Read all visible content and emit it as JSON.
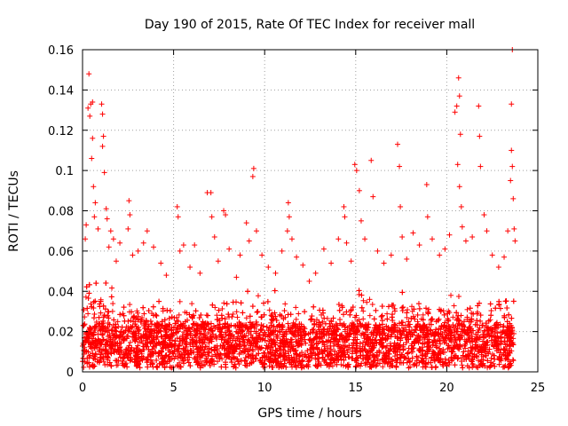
{
  "chart_data": {
    "type": "scatter",
    "title": "Day 190 of 2015, Rate Of TEC Index for receiver mall",
    "xlabel": "GPS time / hours",
    "ylabel": "ROTI / TECUs",
    "xlim": [
      0,
      25
    ],
    "ylim": [
      0,
      0.16
    ],
    "xticks": [
      0,
      5,
      10,
      15,
      20,
      25
    ],
    "xtick_labels": [
      "0",
      "5",
      "10",
      "15",
      "20",
      "25"
    ],
    "yticks": [
      0,
      0.02,
      0.04,
      0.06,
      0.08,
      0.1,
      0.12,
      0.14,
      0.16
    ],
    "ytick_labels": [
      "0",
      "0.02",
      "0.04",
      "0.06",
      "0.08",
      "0.1",
      "0.12",
      "0.14",
      "0.16"
    ],
    "grid": true,
    "marker": "+",
    "color": "#ff0000",
    "x_range_observed": [
      0,
      23.7
    ],
    "series": [
      {
        "points": [
          [
            0.35,
            0.148
          ],
          [
            0.45,
            0.133
          ],
          [
            0.3,
            0.131
          ],
          [
            0.55,
            0.134
          ],
          [
            0.4,
            0.127
          ],
          [
            1.05,
            0.133
          ],
          [
            1.1,
            0.128
          ],
          [
            1.15,
            0.117
          ],
          [
            1.1,
            0.112
          ],
          [
            0.55,
            0.116
          ],
          [
            0.5,
            0.106
          ],
          [
            1.2,
            0.099
          ],
          [
            0.6,
            0.092
          ],
          [
            0.7,
            0.084
          ],
          [
            0.65,
            0.077
          ],
          [
            0.85,
            0.071
          ],
          [
            0.2,
            0.073
          ],
          [
            0.15,
            0.066
          ],
          [
            1.3,
            0.081
          ],
          [
            1.35,
            0.076
          ],
          [
            1.45,
            0.062
          ],
          [
            1.55,
            0.07
          ],
          [
            1.7,
            0.066
          ],
          [
            1.85,
            0.055
          ],
          [
            2.05,
            0.064
          ],
          [
            2.55,
            0.085
          ],
          [
            2.6,
            0.078
          ],
          [
            2.5,
            0.071
          ],
          [
            2.75,
            0.058
          ],
          [
            3.05,
            0.06
          ],
          [
            3.35,
            0.064
          ],
          [
            3.55,
            0.07
          ],
          [
            3.9,
            0.062
          ],
          [
            4.3,
            0.054
          ],
          [
            4.6,
            0.048
          ],
          [
            5.2,
            0.082
          ],
          [
            5.25,
            0.077
          ],
          [
            5.35,
            0.06
          ],
          [
            5.55,
            0.063
          ],
          [
            5.9,
            0.052
          ],
          [
            6.15,
            0.063
          ],
          [
            6.45,
            0.049
          ],
          [
            6.85,
            0.089
          ],
          [
            7.05,
            0.089
          ],
          [
            7.1,
            0.077
          ],
          [
            7.25,
            0.067
          ],
          [
            7.45,
            0.055
          ],
          [
            7.75,
            0.08
          ],
          [
            7.85,
            0.078
          ],
          [
            8.05,
            0.061
          ],
          [
            8.45,
            0.047
          ],
          [
            8.65,
            0.058
          ],
          [
            9.0,
            0.074
          ],
          [
            9.15,
            0.065
          ],
          [
            9.35,
            0.097
          ],
          [
            9.4,
            0.101
          ],
          [
            9.55,
            0.07
          ],
          [
            9.85,
            0.058
          ],
          [
            10.2,
            0.052
          ],
          [
            10.6,
            0.049
          ],
          [
            10.95,
            0.06
          ],
          [
            11.3,
            0.084
          ],
          [
            11.35,
            0.077
          ],
          [
            11.25,
            0.07
          ],
          [
            11.5,
            0.066
          ],
          [
            11.75,
            0.057
          ],
          [
            12.1,
            0.053
          ],
          [
            12.45,
            0.045
          ],
          [
            12.8,
            0.049
          ],
          [
            13.25,
            0.061
          ],
          [
            13.65,
            0.054
          ],
          [
            14.05,
            0.066
          ],
          [
            14.35,
            0.082
          ],
          [
            14.4,
            0.077
          ],
          [
            14.5,
            0.064
          ],
          [
            14.75,
            0.055
          ],
          [
            14.95,
            0.103
          ],
          [
            15.05,
            0.1
          ],
          [
            15.2,
            0.09
          ],
          [
            15.3,
            0.075
          ],
          [
            15.5,
            0.066
          ],
          [
            15.85,
            0.105
          ],
          [
            15.95,
            0.087
          ],
          [
            16.2,
            0.06
          ],
          [
            16.55,
            0.054
          ],
          [
            16.95,
            0.058
          ],
          [
            17.3,
            0.113
          ],
          [
            17.4,
            0.102
          ],
          [
            17.45,
            0.082
          ],
          [
            17.55,
            0.067
          ],
          [
            17.8,
            0.056
          ],
          [
            18.15,
            0.069
          ],
          [
            18.5,
            0.063
          ],
          [
            18.9,
            0.093
          ],
          [
            18.95,
            0.077
          ],
          [
            19.2,
            0.066
          ],
          [
            19.6,
            0.058
          ],
          [
            19.9,
            0.061
          ],
          [
            20.15,
            0.068
          ],
          [
            20.45,
            0.129
          ],
          [
            20.55,
            0.132
          ],
          [
            20.65,
            0.146
          ],
          [
            20.7,
            0.137
          ],
          [
            20.75,
            0.118
          ],
          [
            20.6,
            0.103
          ],
          [
            20.7,
            0.092
          ],
          [
            20.8,
            0.082
          ],
          [
            20.85,
            0.072
          ],
          [
            21.05,
            0.065
          ],
          [
            21.4,
            0.067
          ],
          [
            21.75,
            0.132
          ],
          [
            21.8,
            0.117
          ],
          [
            21.85,
            0.102
          ],
          [
            22.05,
            0.078
          ],
          [
            22.2,
            0.07
          ],
          [
            22.5,
            0.058
          ],
          [
            22.85,
            0.052
          ],
          [
            23.15,
            0.057
          ],
          [
            23.35,
            0.07
          ],
          [
            23.6,
            0.16
          ],
          [
            23.55,
            0.133
          ],
          [
            23.55,
            0.11
          ],
          [
            23.6,
            0.102
          ],
          [
            23.5,
            0.095
          ],
          [
            23.65,
            0.086
          ],
          [
            23.7,
            0.071
          ],
          [
            23.75,
            0.065
          ]
        ]
      }
    ]
  }
}
